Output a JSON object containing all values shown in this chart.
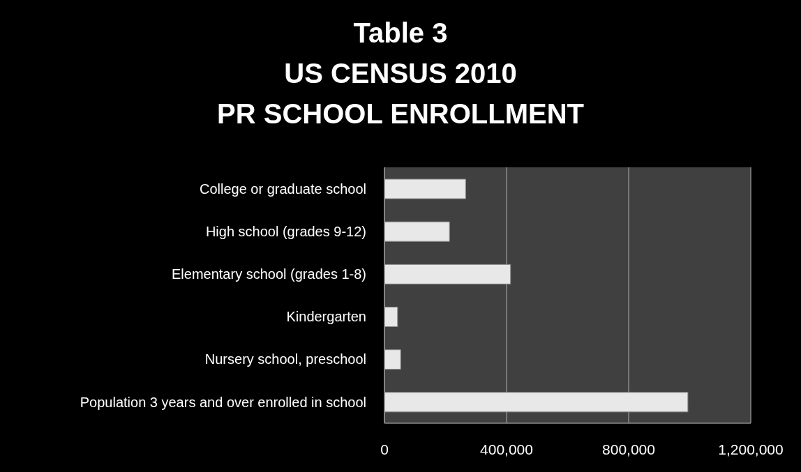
{
  "chart_data": {
    "type": "bar",
    "orientation": "horizontal",
    "title": "Table 3\nUS CENSUS 2010\nPR SCHOOL ENROLLMENT",
    "categories": [
      "College or graduate school",
      "High school (grades 9-12)",
      "Elementary school (grades 1-8)",
      "Kindergarten",
      "Nursery school, preschool",
      "Population 3 years and over enrolled in school"
    ],
    "values": [
      266000,
      213000,
      413000,
      43000,
      53000,
      994000
    ],
    "color": "#e8e8e8",
    "xlim": [
      0,
      1200000
    ],
    "xticks": [
      {
        "value": 0,
        "label": "0"
      },
      {
        "value": 400000,
        "label": "400,000"
      },
      {
        "value": 800000,
        "label": "800,000"
      },
      {
        "value": 1200000,
        "label": "1,200,000"
      }
    ],
    "grid": "x",
    "legend": false
  }
}
